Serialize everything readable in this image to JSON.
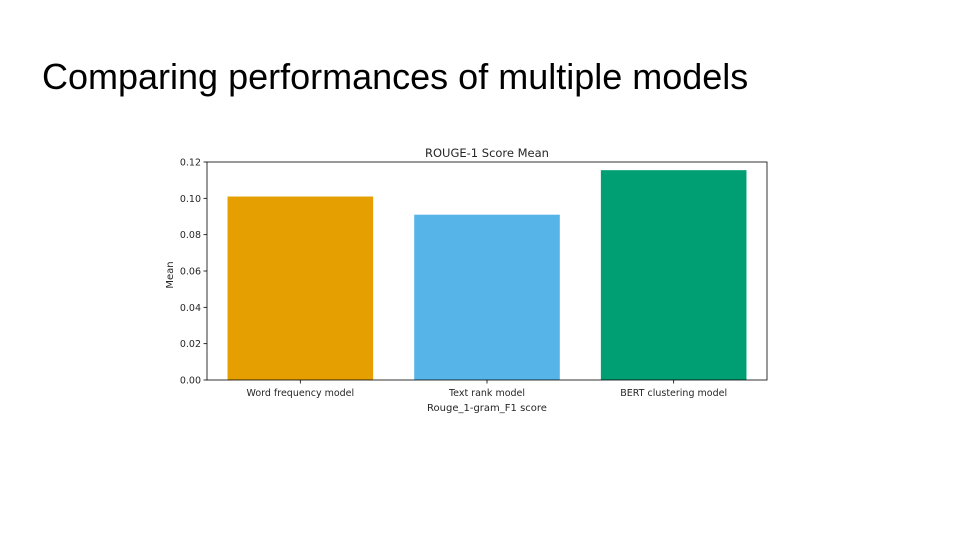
{
  "slide": {
    "title": "Comparing performances of multiple models"
  },
  "chart_data": {
    "type": "bar",
    "title": "ROUGE-1 Score Mean",
    "xlabel": "Rouge_1-gram_F1 score",
    "ylabel": "Mean",
    "categories": [
      "Word frequency model",
      "Text rank model",
      "BERT clustering model"
    ],
    "values": [
      0.101,
      0.091,
      0.1155
    ],
    "colors": [
      "#E69F00",
      "#56B4E9",
      "#009E73"
    ],
    "ylim": [
      0,
      0.12
    ],
    "yticks": [
      "0.00",
      "0.02",
      "0.04",
      "0.06",
      "0.08",
      "0.10",
      "0.12"
    ],
    "grid": false,
    "legend": false
  }
}
